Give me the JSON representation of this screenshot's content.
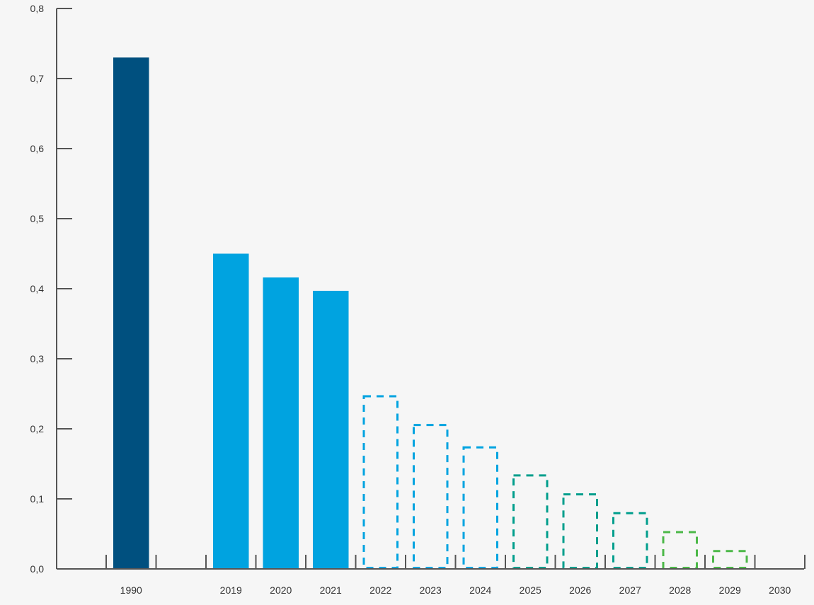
{
  "chart_data": {
    "type": "bar",
    "title": "",
    "xlabel": "",
    "ylabel": "",
    "ylim": [
      0,
      0.8
    ],
    "yticks": [
      "0,0",
      "0,1",
      "0,2",
      "0,3",
      "0,4",
      "0,5",
      "0,6",
      "0,7",
      "0,8"
    ],
    "grid": false,
    "legend": "none",
    "categories": [
      "1990",
      "",
      "2019",
      "2020",
      "2021",
      "2022",
      "2023",
      "2024",
      "2025",
      "2026",
      "2027",
      "2028",
      "2029",
      "2030"
    ],
    "values": [
      0.73,
      null,
      0.45,
      0.416,
      0.397,
      0.248,
      0.207,
      0.175,
      0.135,
      0.108,
      0.081,
      0.054,
      0.027,
      0.0
    ],
    "bar_styles": [
      "solid",
      "none",
      "solid",
      "solid",
      "solid",
      "dashed",
      "dashed",
      "dashed",
      "dashed",
      "dashed",
      "dashed",
      "dashed",
      "dashed",
      "dashed"
    ],
    "bar_colors": [
      "#00507f",
      "",
      "#00a3e0",
      "#00a3e0",
      "#00a3e0",
      "#00a3e0",
      "#00a3e0",
      "#00a3e0",
      "#009e8c",
      "#009e8c",
      "#009e8c",
      "#4cb848",
      "#4cb848",
      "#4cb848"
    ]
  },
  "colors": {
    "axis": "#555555",
    "text": "#333333",
    "background": "#f6f6f6"
  }
}
